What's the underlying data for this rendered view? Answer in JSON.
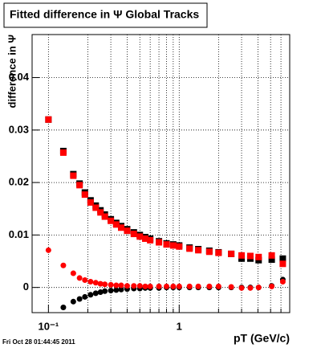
{
  "chart_data": {
    "type": "scatter",
    "title": "Fitted difference in Ψ   Global Tracks",
    "y_label": "difference in Ψ",
    "x_label": "pT (GeV/c)",
    "footer": "Fri Oct 28 01:44:45 2011",
    "log_x": true,
    "grid": true,
    "xlim": [
      0.075,
      7
    ],
    "ylim": [
      -0.0048,
      0.0482
    ],
    "xticks": [
      {
        "value": 0.1,
        "label": "10⁻¹"
      },
      1
    ],
    "xminorticks": [
      0.2,
      0.3,
      0.4,
      0.5,
      0.6,
      0.7,
      0.8,
      0.9,
      2,
      3,
      4,
      5,
      6
    ],
    "yticks": [
      0,
      0.01,
      0.02,
      0.03,
      0.04
    ],
    "x": [
      0.1,
      0.13,
      0.155,
      0.173,
      0.19,
      0.21,
      0.23,
      0.25,
      0.27,
      0.3,
      0.33,
      0.36,
      0.4,
      0.45,
      0.5,
      0.55,
      0.6,
      0.7,
      0.8,
      0.9,
      1.0,
      1.2,
      1.4,
      1.7,
      2.0,
      2.5,
      3.0,
      3.5,
      4.05,
      5.1,
      6.2
    ],
    "series": [
      {
        "color": "#000000",
        "marker": "square",
        "values": [
          0.032,
          0.026,
          0.0216,
          0.0198,
          0.0181,
          0.0166,
          0.0156,
          0.0147,
          0.0139,
          0.013,
          0.0123,
          0.0117,
          0.0111,
          0.0105,
          0.01,
          0.0096,
          0.0093,
          0.0088,
          0.0084,
          0.0082,
          0.008,
          0.0076,
          0.0073,
          0.007,
          0.0067,
          0.0064,
          0.0055,
          0.0055,
          0.0052,
          0.0053,
          0.0055
        ]
      },
      {
        "color": "#000000",
        "marker": "circle",
        "values": [
          null,
          -0.0038,
          -0.0027,
          -0.0022,
          -0.0018,
          -0.0014,
          -0.0011,
          -0.0009,
          -0.0007,
          -0.0006,
          -0.0005,
          -0.0004,
          -0.0003,
          -0.0002,
          -0.0002,
          -0.0001,
          -0.0001,
          -0.0001,
          0.0,
          0.0,
          0.0,
          0.0,
          0.0,
          0.0,
          0.0,
          0.0,
          0.0,
          0.0,
          0.0,
          0.0003,
          0.0015
        ]
      },
      {
        "color": "#ff0000",
        "marker": "square",
        "values": [
          0.032,
          0.0257,
          0.0213,
          0.0195,
          0.0177,
          0.0162,
          0.0152,
          0.0143,
          0.0135,
          0.0127,
          0.012,
          0.0114,
          0.0108,
          0.0102,
          0.0097,
          0.0093,
          0.009,
          0.0086,
          0.0082,
          0.008,
          0.0078,
          0.0074,
          0.0071,
          0.0068,
          0.0066,
          0.0064,
          0.0061,
          0.006,
          0.0058,
          0.0061,
          0.0045
        ]
      },
      {
        "color": "#ff0000",
        "marker": "circle",
        "values": [
          0.0071,
          0.0042,
          0.0027,
          0.0018,
          0.0014,
          0.0011,
          0.0009,
          0.0007,
          0.0006,
          0.0005,
          0.0004,
          0.0004,
          0.0003,
          0.0003,
          0.0003,
          0.0002,
          0.0002,
          0.0002,
          0.0002,
          0.0002,
          0.0002,
          0.0002,
          0.0002,
          0.0002,
          0.0002,
          0.0001,
          -0.0001,
          -0.0001,
          0.0,
          0.0002,
          0.0011
        ]
      }
    ]
  }
}
